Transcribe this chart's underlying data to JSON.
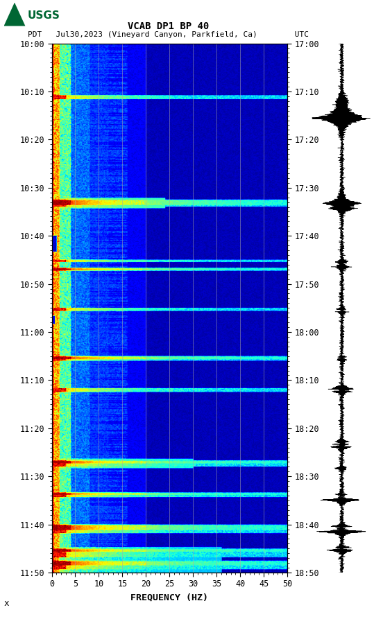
{
  "title_line1": "VCAB DP1 BP 40",
  "title_line2": "PDT   Jul30,2023 (Vineyard Canyon, Parkfield, Ca)        UTC",
  "xlabel": "FREQUENCY (HZ)",
  "freq_min": 0,
  "freq_max": 50,
  "freq_ticks": [
    0,
    5,
    10,
    15,
    20,
    25,
    30,
    35,
    40,
    45,
    50
  ],
  "left_time_labels": [
    "10:00",
    "10:10",
    "10:20",
    "10:30",
    "10:40",
    "10:50",
    "11:00",
    "11:10",
    "11:20",
    "11:30",
    "11:40",
    "11:50"
  ],
  "right_time_labels": [
    "17:00",
    "17:10",
    "17:20",
    "17:30",
    "17:40",
    "17:50",
    "18:00",
    "18:10",
    "18:20",
    "18:30",
    "18:40",
    "18:50"
  ],
  "n_time_steps": 660,
  "n_freq_steps": 250,
  "fig_bg": "#ffffff",
  "usgs_green": "#006633",
  "vertical_lines_freq": [
    5,
    10,
    15,
    20,
    25,
    30,
    35,
    40,
    45
  ],
  "vertical_line_color": "#aaaaaa",
  "event_rows": [
    65,
    66,
    67,
    68,
    69,
    195,
    196,
    197,
    198,
    199,
    200,
    201,
    202,
    203,
    270,
    271,
    272,
    280,
    281,
    282,
    283,
    330,
    331,
    332,
    333,
    390,
    391,
    392,
    393,
    394,
    395,
    430,
    431,
    432,
    433,
    434,
    520,
    521,
    522,
    523,
    524,
    525,
    526,
    527,
    560,
    561,
    562,
    563,
    564,
    565,
    600,
    601,
    602,
    603,
    604,
    605,
    606,
    607,
    608,
    609,
    610,
    630,
    631,
    632,
    633,
    634,
    635,
    636,
    637,
    638,
    639,
    640,
    645,
    646,
    647,
    648,
    649,
    650,
    651,
    652,
    653,
    654,
    655
  ],
  "prominent_rows": [
    196,
    197,
    198,
    199,
    200,
    201,
    281,
    282,
    391,
    392,
    393,
    521,
    522,
    523,
    561,
    562,
    601,
    602,
    603,
    604,
    605,
    606,
    631,
    632,
    633,
    646,
    647,
    648,
    649,
    650
  ]
}
